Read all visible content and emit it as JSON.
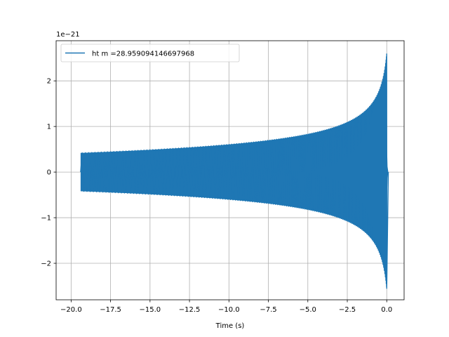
{
  "chart_data": {
    "type": "line",
    "title": "",
    "xlabel": "Time (s)",
    "ylabel": "",
    "y_scale_label": "1e−21",
    "xlim": [
      -20.95,
      1.1
    ],
    "ylim": [
      -2.8,
      2.88
    ],
    "x_ticks": [
      {
        "value": -20.0,
        "label": "−20.0"
      },
      {
        "value": -17.5,
        "label": "−17.5"
      },
      {
        "value": -15.0,
        "label": "−15.0"
      },
      {
        "value": -12.5,
        "label": "−12.5"
      },
      {
        "value": -10.0,
        "label": "−10.0"
      },
      {
        "value": -7.5,
        "label": "−7.5"
      },
      {
        "value": -5.0,
        "label": "−5.0"
      },
      {
        "value": -2.5,
        "label": "−2.5"
      },
      {
        "value": 0.0,
        "label": "0.0"
      }
    ],
    "y_ticks": [
      {
        "value": 2,
        "label": "2"
      },
      {
        "value": 1,
        "label": "1"
      },
      {
        "value": 0,
        "label": "0"
      },
      {
        "value": -1,
        "label": "−1"
      },
      {
        "value": -2,
        "label": "−2"
      }
    ],
    "grid": true,
    "legend_position": "top-left",
    "series": [
      {
        "name": "ht m =28.959094146697968",
        "color": "#1f77b4",
        "t_start": -19.4,
        "t_merger": 0.0,
        "t_end": 0.1,
        "amplitude_start": 0.42,
        "amplitude_peak": 2.6,
        "amplitude_trough": -2.55
      }
    ]
  }
}
